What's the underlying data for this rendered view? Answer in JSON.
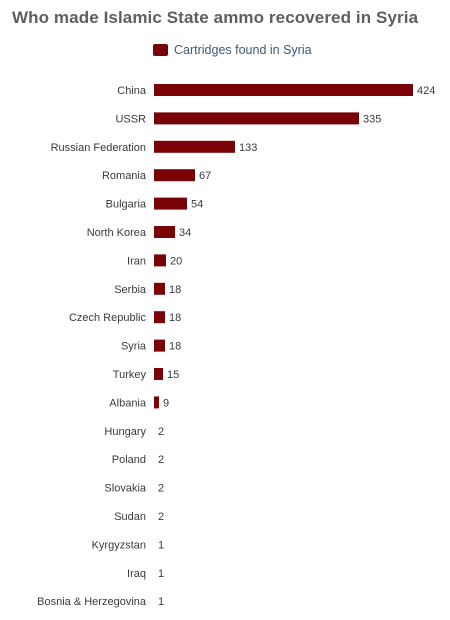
{
  "chart_data": {
    "type": "bar",
    "orientation": "horizontal",
    "title": "Who made Islamic State ammo recovered in Syria",
    "categories": [
      "China",
      "USSR",
      "Russian Federation",
      "Romania",
      "Bulgaria",
      "North Korea",
      "Iran",
      "Serbia",
      "Czech Republic",
      "Syria",
      "Turkey",
      "Albania",
      "Hungary",
      "Poland",
      "Slovakia",
      "Sudan",
      "Kyrgyzstan",
      "Iraq",
      "Bosnia & Herzegovina"
    ],
    "series": [
      {
        "name": "Cartridges found in Syria",
        "color": "#7a0307",
        "values": [
          424,
          335,
          133,
          67,
          54,
          34,
          20,
          18,
          18,
          18,
          15,
          9,
          2,
          2,
          2,
          2,
          1,
          1,
          1
        ]
      }
    ],
    "xlim": [
      0,
      424
    ],
    "grid": false,
    "legend_position": "top",
    "data_labels": true
  }
}
